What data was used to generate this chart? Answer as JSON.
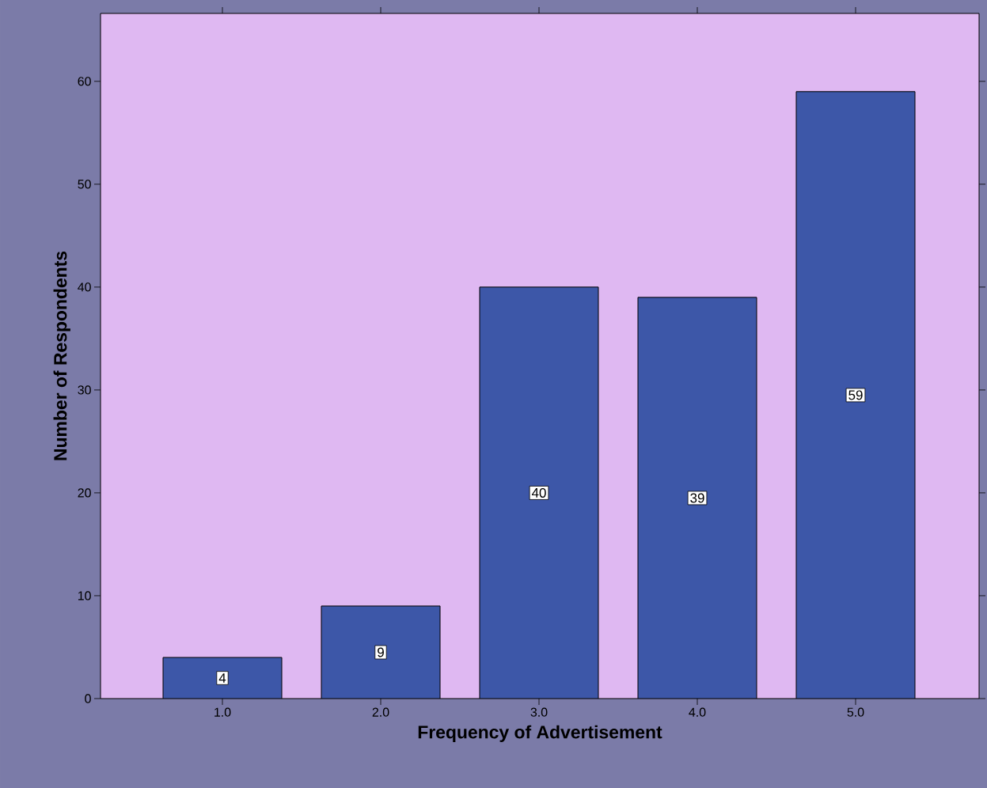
{
  "chart_data": {
    "type": "bar",
    "xlabel": "Frequency of Advertisement",
    "ylabel": "Number of Respondents",
    "categories": [
      "1.0",
      "2.0",
      "3.0",
      "4.0",
      "5.0"
    ],
    "values": [
      4,
      9,
      40,
      39,
      59
    ],
    "color": "#3d57a8",
    "ylim": [
      0,
      66.6
    ],
    "yticks": [
      0,
      10,
      20,
      30,
      40,
      50,
      60
    ],
    "grid": false,
    "data_labels": true
  }
}
